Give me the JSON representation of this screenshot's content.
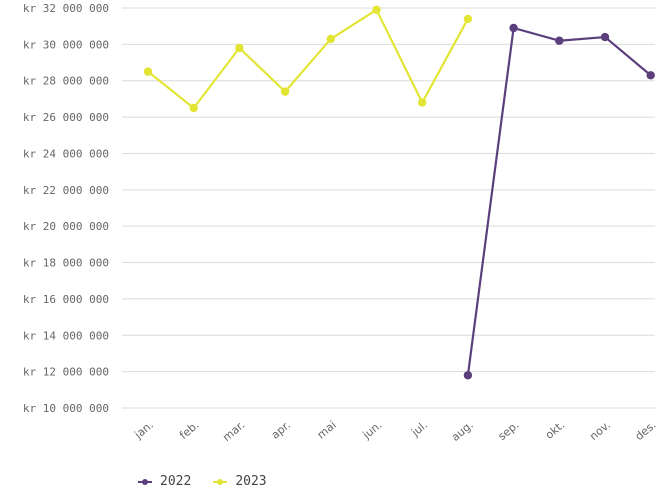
{
  "chart_data": {
    "type": "line",
    "categories": [
      "jan.",
      "feb.",
      "mar.",
      "apr.",
      "mai",
      "jun.",
      "jul.",
      "aug.",
      "sep.",
      "okt.",
      "nov.",
      "des."
    ],
    "series": [
      {
        "name": "2022",
        "color": "#5b3f7d",
        "values": [
          null,
          null,
          null,
          null,
          null,
          null,
          null,
          11800000,
          30900000,
          30200000,
          30400000,
          28300000
        ]
      },
      {
        "name": "2023",
        "color": "#e3e535",
        "values": [
          28500000,
          26500000,
          29800000,
          27400000,
          30300000,
          31900000,
          26800000,
          31400000,
          null,
          null,
          null,
          null
        ]
      }
    ],
    "ylim": [
      10000000,
      32000000
    ],
    "yticks": [
      "kr 10 000 000",
      "kr 12 000 000",
      "kr 14 000 000",
      "kr 16 000 000",
      "kr 18 000 000",
      "kr 20 000 000",
      "kr 22 000 000",
      "kr 24 000 000",
      "kr 26 000 000",
      "kr 28 000 000",
      "kr 30 000 000",
      "kr 32 000 000"
    ],
    "ytick_values": [
      10000000,
      12000000,
      14000000,
      16000000,
      18000000,
      20000000,
      22000000,
      24000000,
      26000000,
      28000000,
      30000000,
      32000000
    ],
    "grid": true,
    "legend_position": "bottom-left"
  }
}
